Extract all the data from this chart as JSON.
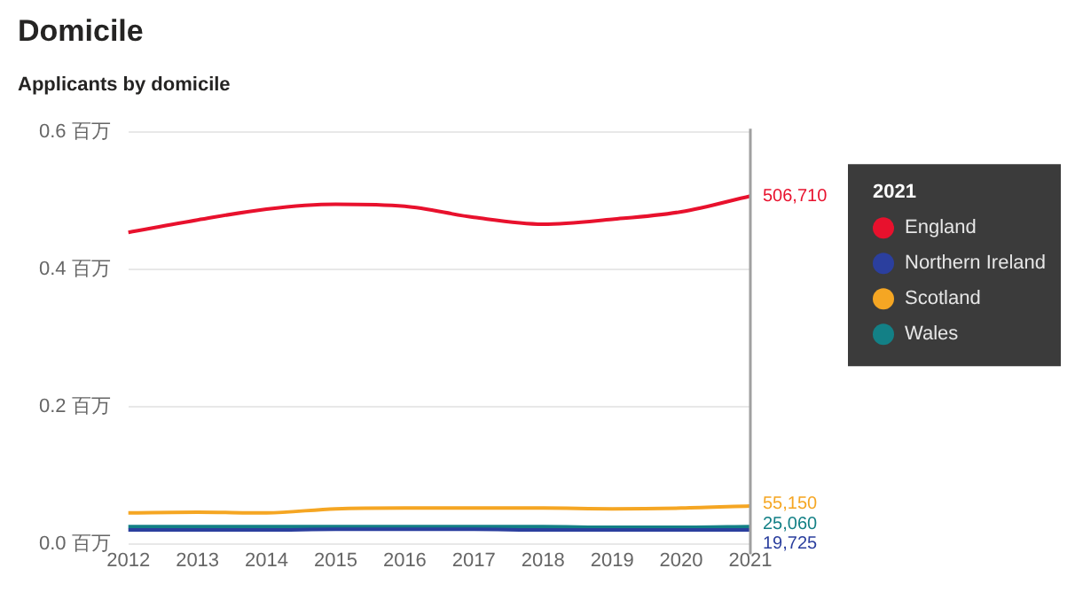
{
  "chart_data": {
    "type": "line",
    "title": "Domicile",
    "subtitle": "Applicants by domicile",
    "legend_title": "2021",
    "categories": [
      "2012",
      "2013",
      "2014",
      "2015",
      "2016",
      "2017",
      "2018",
      "2019",
      "2020",
      "2021"
    ],
    "series": [
      {
        "name": "England",
        "color": "#e8112d",
        "values": [
          0.454,
          0.472,
          0.488,
          0.495,
          0.492,
          0.476,
          0.466,
          0.473,
          0.484,
          0.507
        ]
      },
      {
        "name": "Northern Ireland",
        "color": "#2b3f9e",
        "values": [
          0.02,
          0.02,
          0.02,
          0.021,
          0.021,
          0.021,
          0.02,
          0.02,
          0.02,
          0.02
        ]
      },
      {
        "name": "Scotland",
        "color": "#f5a623",
        "values": [
          0.045,
          0.046,
          0.045,
          0.051,
          0.052,
          0.052,
          0.052,
          0.051,
          0.052,
          0.055
        ]
      },
      {
        "name": "Wales",
        "color": "#138086",
        "values": [
          0.025,
          0.025,
          0.025,
          0.025,
          0.025,
          0.025,
          0.025,
          0.024,
          0.024,
          0.025
        ]
      }
    ],
    "annotations": [
      {
        "text": "506,710",
        "x": "2021",
        "y": 0.507
      },
      {
        "text": "19,725",
        "x": "2021",
        "y": 0.02
      },
      {
        "text": "55,150",
        "x": "2021",
        "y": 0.055
      },
      {
        "text": "25,060",
        "x": "2021",
        "y": 0.025
      }
    ],
    "ylim": [
      0,
      0.6
    ],
    "yticks": [
      {
        "value": 0,
        "label": "0.0 百万"
      },
      {
        "value": 0.2,
        "label": "0.2 百万"
      },
      {
        "value": 0.4,
        "label": "0.4 百万"
      },
      {
        "value": 0.6,
        "label": "0.6 百万"
      }
    ],
    "ref_lines": [
      {
        "axis": "x",
        "value": "2021",
        "color": "#a0a0a0"
      }
    ],
    "grid": "y",
    "legend": "right",
    "line_style": "solid"
  }
}
